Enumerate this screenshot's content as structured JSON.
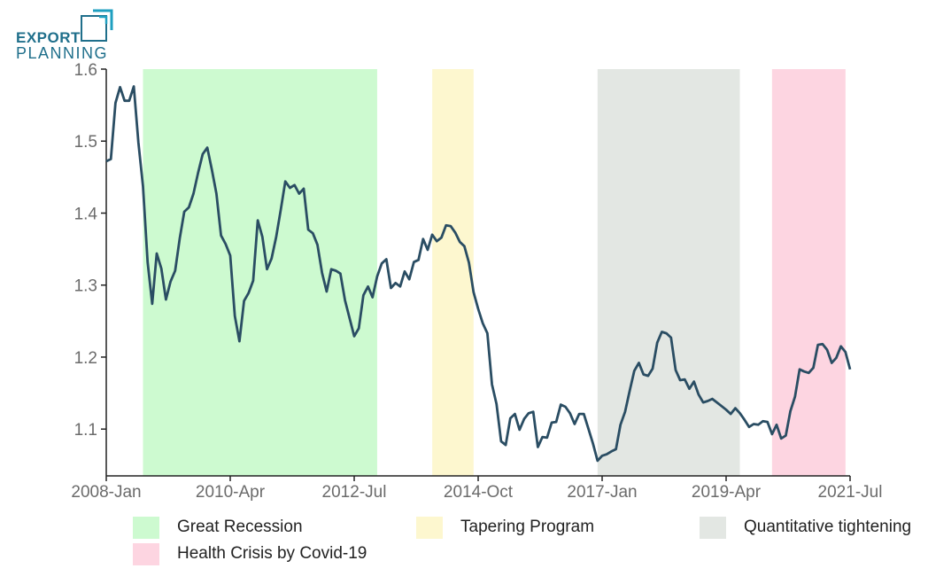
{
  "logo": {
    "line1": "EXPORT",
    "line2": "PLANNING"
  },
  "chart_data": {
    "type": "line",
    "title": "",
    "xlabel": "",
    "ylabel": "",
    "ylim": [
      1.035,
      1.6
    ],
    "xlim": [
      "2008-01",
      "2021-07"
    ],
    "yticks": [
      "1.1",
      "1.2",
      "1.3",
      "1.4",
      "1.5",
      "1.6"
    ],
    "xticks": [
      "2008-Jan",
      "2010-Apr",
      "2012-Jul",
      "2014-Oct",
      "2017-Jan",
      "2019-Apr",
      "2021-Jul"
    ],
    "line_color": "#2a4d63",
    "grid": false,
    "legend_position": "bottom",
    "periods": [
      {
        "label": "Great Recession",
        "start": "2008-09",
        "end": "2012-12",
        "color": "#cdfad0"
      },
      {
        "label": "Tapering Program",
        "start": "2013-12",
        "end": "2014-09",
        "color": "#fdf7cf"
      },
      {
        "label": "Quantitative tightening",
        "start": "2016-12",
        "end": "2019-07",
        "color": "#e3e7e3"
      },
      {
        "label": "Health Crisis by Covid-19",
        "start": "2020-02",
        "end": "2021-06",
        "color": "#fdd5e1"
      }
    ],
    "x": [
      "2008-01",
      "2008-02",
      "2008-03",
      "2008-04",
      "2008-05",
      "2008-06",
      "2008-07",
      "2008-08",
      "2008-09",
      "2008-10",
      "2008-11",
      "2008-12",
      "2009-01",
      "2009-02",
      "2009-03",
      "2009-04",
      "2009-05",
      "2009-06",
      "2009-07",
      "2009-08",
      "2009-09",
      "2009-10",
      "2009-11",
      "2009-12",
      "2010-01",
      "2010-02",
      "2010-03",
      "2010-04",
      "2010-05",
      "2010-06",
      "2010-07",
      "2010-08",
      "2010-09",
      "2010-10",
      "2010-11",
      "2010-12",
      "2011-01",
      "2011-02",
      "2011-03",
      "2011-04",
      "2011-05",
      "2011-06",
      "2011-07",
      "2011-08",
      "2011-09",
      "2011-10",
      "2011-11",
      "2011-12",
      "2012-01",
      "2012-02",
      "2012-03",
      "2012-04",
      "2012-05",
      "2012-06",
      "2012-07",
      "2012-08",
      "2012-09",
      "2012-10",
      "2012-11",
      "2012-12",
      "2013-01",
      "2013-02",
      "2013-03",
      "2013-04",
      "2013-05",
      "2013-06",
      "2013-07",
      "2013-08",
      "2013-09",
      "2013-10",
      "2013-11",
      "2013-12",
      "2014-01",
      "2014-02",
      "2014-03",
      "2014-04",
      "2014-05",
      "2014-06",
      "2014-07",
      "2014-08",
      "2014-09",
      "2014-10",
      "2014-11",
      "2014-12",
      "2015-01",
      "2015-02",
      "2015-03",
      "2015-04",
      "2015-05",
      "2015-06",
      "2015-07",
      "2015-08",
      "2015-09",
      "2015-10",
      "2015-11",
      "2015-12",
      "2016-01",
      "2016-02",
      "2016-03",
      "2016-04",
      "2016-05",
      "2016-06",
      "2016-07",
      "2016-08",
      "2016-09",
      "2016-10",
      "2016-11",
      "2016-12",
      "2017-01",
      "2017-02",
      "2017-03",
      "2017-04",
      "2017-05",
      "2017-06",
      "2017-07",
      "2017-08",
      "2017-09",
      "2017-10",
      "2017-11",
      "2017-12",
      "2018-01",
      "2018-02",
      "2018-03",
      "2018-04",
      "2018-05",
      "2018-06",
      "2018-07",
      "2018-08",
      "2018-09",
      "2018-10",
      "2018-11",
      "2018-12",
      "2019-01",
      "2019-02",
      "2019-03",
      "2019-04",
      "2019-05",
      "2019-06",
      "2019-07",
      "2019-08",
      "2019-09",
      "2019-10",
      "2019-11",
      "2019-12",
      "2020-01",
      "2020-02",
      "2020-03",
      "2020-04",
      "2020-05",
      "2020-06",
      "2020-07",
      "2020-08",
      "2020-09",
      "2020-10",
      "2020-11",
      "2020-12",
      "2021-01",
      "2021-02",
      "2021-03",
      "2021-04",
      "2021-05",
      "2021-06",
      "2021-07"
    ],
    "values": [
      1.472,
      1.475,
      1.553,
      1.575,
      1.556,
      1.556,
      1.576,
      1.498,
      1.437,
      1.332,
      1.274,
      1.344,
      1.323,
      1.28,
      1.305,
      1.32,
      1.365,
      1.402,
      1.408,
      1.427,
      1.456,
      1.482,
      1.491,
      1.46,
      1.427,
      1.369,
      1.357,
      1.341,
      1.257,
      1.222,
      1.278,
      1.289,
      1.306,
      1.39,
      1.367,
      1.322,
      1.337,
      1.367,
      1.404,
      1.444,
      1.435,
      1.439,
      1.427,
      1.434,
      1.377,
      1.372,
      1.356,
      1.317,
      1.291,
      1.322,
      1.32,
      1.316,
      1.279,
      1.254,
      1.229,
      1.24,
      1.286,
      1.298,
      1.283,
      1.312,
      1.33,
      1.336,
      1.296,
      1.303,
      1.298,
      1.319,
      1.308,
      1.332,
      1.335,
      1.364,
      1.349,
      1.37,
      1.361,
      1.366,
      1.383,
      1.382,
      1.373,
      1.36,
      1.354,
      1.331,
      1.29,
      1.267,
      1.247,
      1.233,
      1.162,
      1.135,
      1.083,
      1.078,
      1.115,
      1.121,
      1.099,
      1.114,
      1.122,
      1.124,
      1.075,
      1.089,
      1.088,
      1.109,
      1.11,
      1.134,
      1.131,
      1.122,
      1.107,
      1.121,
      1.121,
      1.101,
      1.08,
      1.056,
      1.063,
      1.065,
      1.069,
      1.072,
      1.106,
      1.124,
      1.153,
      1.181,
      1.192,
      1.176,
      1.174,
      1.184,
      1.22,
      1.235,
      1.233,
      1.227,
      1.182,
      1.168,
      1.169,
      1.156,
      1.166,
      1.148,
      1.137,
      1.139,
      1.142,
      1.137,
      1.132,
      1.127,
      1.121,
      1.129,
      1.122,
      1.113,
      1.103,
      1.107,
      1.106,
      1.111,
      1.11,
      1.093,
      1.106,
      1.087,
      1.091,
      1.125,
      1.145,
      1.183,
      1.18,
      1.178,
      1.185,
      1.217,
      1.218,
      1.21,
      1.192,
      1.199,
      1.215,
      1.207,
      1.183
    ]
  }
}
